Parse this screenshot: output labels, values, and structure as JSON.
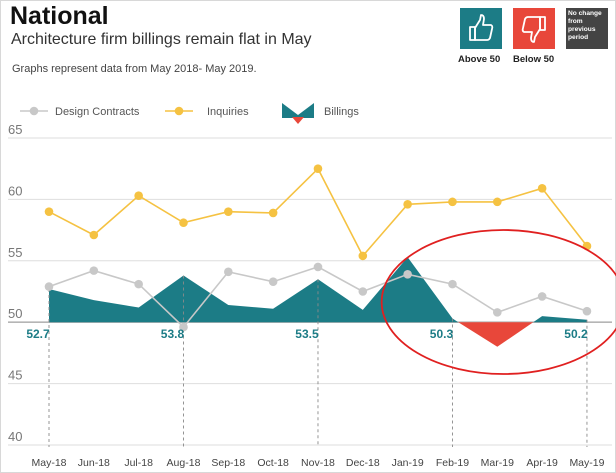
{
  "header": {
    "title": "National",
    "subtitle": "Architecture firm billings remain flat in May",
    "note": "Graphs represent data from May 2018- May 2019."
  },
  "status_key": {
    "above_label": "Above 50",
    "below_label": "Below 50",
    "no_change_lines": [
      "No change",
      "from",
      "previous",
      "period"
    ],
    "above_color": "#1c7c86",
    "below_color": "#e8473a",
    "no_change_color": "#444444"
  },
  "chart_data": {
    "type": "line",
    "categories": [
      "May-18",
      "Jun-18",
      "Jul-18",
      "Aug-18",
      "Sep-18",
      "Oct-18",
      "Nov-18",
      "Dec-18",
      "Jan-19",
      "Feb-19",
      "Mar-19",
      "Apr-19",
      "May-19"
    ],
    "ylim": [
      40,
      65
    ],
    "yticks": [
      40,
      45,
      50,
      55,
      60,
      65
    ],
    "baseline": 50,
    "grid": true,
    "legend_position": "top-left",
    "series": [
      {
        "name": "Design Contracts",
        "type": "line",
        "color": "#c8c8c8",
        "values": [
          52.9,
          54.2,
          53.1,
          49.6,
          54.1,
          53.3,
          54.5,
          52.5,
          53.9,
          53.1,
          50.8,
          52.1,
          50.9
        ]
      },
      {
        "name": "Inquiries",
        "type": "line",
        "color": "#f5c242",
        "values": [
          59.0,
          57.1,
          60.3,
          58.1,
          59.0,
          58.9,
          62.5,
          55.4,
          59.6,
          59.8,
          59.8,
          60.9,
          56.2
        ]
      },
      {
        "name": "Billings",
        "type": "area",
        "color_above": "#1c7c86",
        "color_below": "#e8473a",
        "values": [
          52.7,
          51.8,
          51.2,
          53.8,
          51.4,
          51.1,
          53.5,
          51.0,
          55.3,
          50.3,
          48.0,
          50.5,
          50.2
        ]
      }
    ],
    "annotations": [
      {
        "category": "May-18",
        "label": "52.7"
      },
      {
        "category": "Aug-18",
        "label": "53.8"
      },
      {
        "category": "Nov-18",
        "label": "53.5"
      },
      {
        "category": "Feb-19",
        "label": "50.3"
      },
      {
        "category": "May-19",
        "label": "50.2"
      }
    ],
    "highlight": {
      "type": "ellipse",
      "color": "#e02020",
      "from_category": "Jan-19",
      "to_category": "May-19"
    }
  }
}
